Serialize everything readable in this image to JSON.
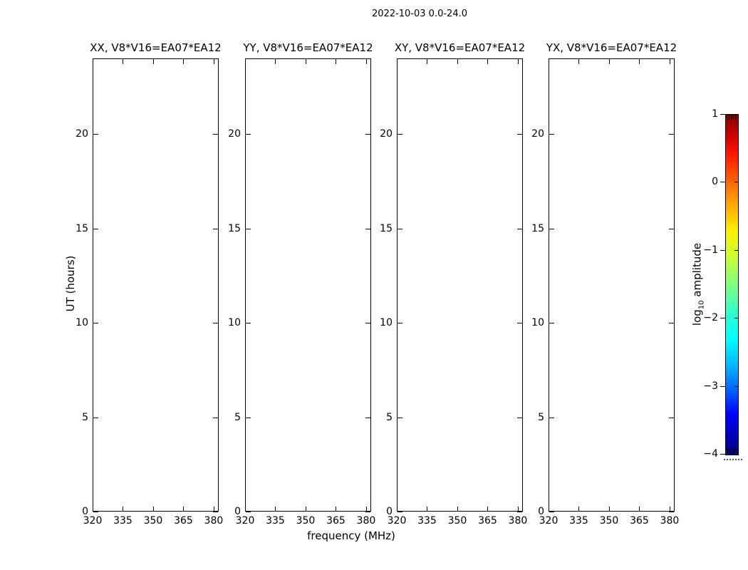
{
  "figure": {
    "title": "2022-10-03 0.0-24.0",
    "background_color": "#ffffff",
    "text_color": "#000000"
  },
  "chart_data": {
    "type": "heatmap",
    "title": "2022-10-03 0.0-24.0",
    "panels": [
      {
        "key": "xx",
        "title": "XX, V8*V16=EA07*EA12"
      },
      {
        "key": "yy",
        "title": "YY, V8*V16=EA07*EA12"
      },
      {
        "key": "xy",
        "title": "XY, V8*V16=EA07*EA12"
      },
      {
        "key": "yx",
        "title": "YX, V8*V16=EA07*EA12"
      }
    ],
    "xlabel": "frequency (MHz)",
    "ylabel": "UT (hours)",
    "x_ticks": [
      320,
      335,
      350,
      365,
      380
    ],
    "y_ticks": [
      0,
      5,
      10,
      15,
      20
    ],
    "xlim": [
      320,
      382
    ],
    "ylim": [
      0,
      24
    ],
    "grid": false,
    "values": [],
    "note": "all four panels are blank (no amplitude pixels rendered)",
    "colorbar": {
      "label": "log10 amplitude",
      "label_prefix": "log",
      "label_sub": "10",
      "label_suffix": "amplitude",
      "ticks": [
        1,
        0,
        -1,
        -2,
        -3,
        -4
      ],
      "tick_labels": [
        "1",
        "0",
        "−1",
        "−2",
        "−3",
        "−4"
      ],
      "vmin": -4,
      "vmax": 1,
      "colormap": "jet",
      "colors_top_to_bottom": [
        "#800000",
        "#ff0000",
        "#ffee00",
        "#80ff80",
        "#00ffff",
        "#0000ff",
        "#000080"
      ]
    }
  }
}
